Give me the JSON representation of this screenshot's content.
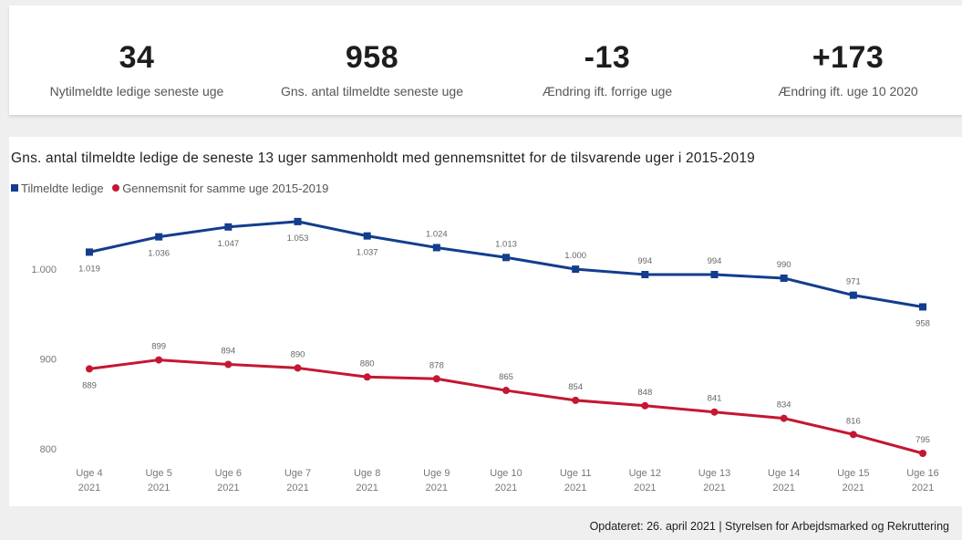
{
  "kpis": [
    {
      "value": "34",
      "label": "Nytilmeldte ledige seneste uge"
    },
    {
      "value": "958",
      "label": "Gns. antal tilmeldte seneste uge"
    },
    {
      "value": "-13",
      "label": "Ændring ift. forrige uge"
    },
    {
      "value": "+173",
      "label": "Ændring ift. uge 10 2020"
    }
  ],
  "chart_data": {
    "type": "line",
    "title": "Gns. antal tilmeldte ledige de seneste 13 uger sammenholdt med gennemsnittet for de tilsvarende uger i 2015-2019",
    "categories": [
      [
        "Uge 4",
        "2021"
      ],
      [
        "Uge 5",
        "2021"
      ],
      [
        "Uge 6",
        "2021"
      ],
      [
        "Uge 7",
        "2021"
      ],
      [
        "Uge 8",
        "2021"
      ],
      [
        "Uge 9",
        "2021"
      ],
      [
        "Uge 10",
        "2021"
      ],
      [
        "Uge 11",
        "2021"
      ],
      [
        "Uge 12",
        "2021"
      ],
      [
        "Uge 13",
        "2021"
      ],
      [
        "Uge 14",
        "2021"
      ],
      [
        "Uge 15",
        "2021"
      ],
      [
        "Uge 16",
        "2021"
      ]
    ],
    "series": [
      {
        "name": "Tilmeldte ledige",
        "color": "#133d8d",
        "marker": "square",
        "values": [
          1019,
          1036,
          1047,
          1053,
          1037,
          1024,
          1013,
          1000,
          994,
          994,
          990,
          971,
          958
        ],
        "labels": [
          "1.019",
          "1.036",
          "1.047",
          "1.053",
          "1.037",
          "1.024",
          "1.013",
          "1.000",
          "994",
          "994",
          "990",
          "971",
          "958"
        ],
        "label_pos": [
          "below",
          "below",
          "below",
          "below",
          "below",
          "above",
          "above",
          "above",
          "above",
          "above",
          "above",
          "above",
          "below"
        ]
      },
      {
        "name": "Gennemsnit for samme uge 2015-2019",
        "color": "#c41732",
        "marker": "circle",
        "values": [
          889,
          899,
          894,
          890,
          880,
          878,
          865,
          854,
          848,
          841,
          834,
          816,
          795
        ],
        "labels": [
          "889",
          "899",
          "894",
          "890",
          "880",
          "878",
          "865",
          "854",
          "848",
          "841",
          "834",
          "816",
          "795"
        ],
        "label_pos": [
          "below",
          "above",
          "above",
          "above",
          "above",
          "above",
          "above",
          "above",
          "above",
          "above",
          "above",
          "above",
          "above"
        ]
      }
    ],
    "ylim": [
      795,
      1060
    ],
    "yticks": [
      800,
      900,
      1000
    ],
    "ytick_labels": [
      "800",
      "900",
      "1.000"
    ],
    "grid": false,
    "legend": "top-left"
  },
  "footer": "Opdateret: 26. april 2021 | Styrelsen for Arbejdsmarked og Rekruttering"
}
